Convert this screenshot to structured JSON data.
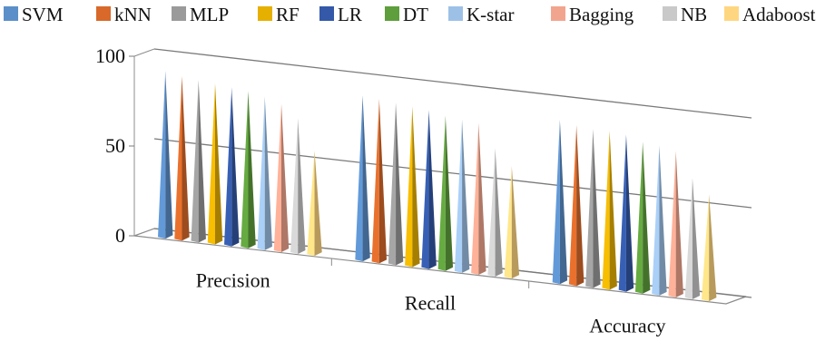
{
  "chart_data": {
    "type": "bar",
    "title": "",
    "xlabel": "",
    "ylabel": "",
    "ylim": [
      0,
      100
    ],
    "yticks": [
      0,
      50,
      100
    ],
    "grid": true,
    "legend_position": "top",
    "categories": [
      "Precision",
      "Recall",
      "Accuracy"
    ],
    "series": [
      {
        "name": "SVM",
        "color": "#5B8FC9",
        "values": [
          92,
          91,
          90
        ]
      },
      {
        "name": "kNN",
        "color": "#D8692A",
        "values": [
          90,
          90,
          88
        ]
      },
      {
        "name": "MLP",
        "color": "#9A9A9A",
        "values": [
          89,
          89,
          87
        ]
      },
      {
        "name": "RF",
        "color": "#E6B000",
        "values": [
          88,
          88,
          87
        ]
      },
      {
        "name": "LR",
        "color": "#3359A8",
        "values": [
          87,
          87,
          86
        ]
      },
      {
        "name": "DT",
        "color": "#5E9E3C",
        "values": [
          86,
          85,
          83
        ]
      },
      {
        "name": "K-star",
        "color": "#9DC1E6",
        "values": [
          84,
          84,
          82
        ]
      },
      {
        "name": "Bagging",
        "color": "#F2A58E",
        "values": [
          81,
          83,
          80
        ]
      },
      {
        "name": "NB",
        "color": "#C9C9C9",
        "values": [
          74,
          70,
          66
        ]
      },
      {
        "name": "Adaboost",
        "color": "#FFD680",
        "values": [
          57,
          61,
          58
        ]
      }
    ]
  }
}
